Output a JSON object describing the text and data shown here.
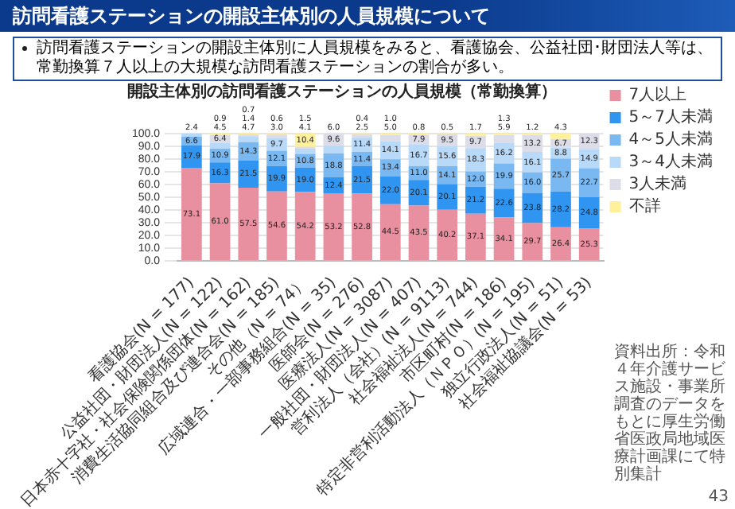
{
  "chart_data": {
    "type": "bar",
    "stacked": true,
    "title": "訪問看護ステーションの開設主体別の人員規模について",
    "subtitle": "開設主体別の訪問看護ステーションの人員規模（常勤換算）",
    "categories": [
      "看護協会(N = 177)",
      "公益社団・財団法人(N = 122)",
      "日本赤十字社・社会保険関係団体(N = 162)",
      "消費生活協同組合及び連合会(N = 185)",
      "その他（N = 74）",
      "広域連合・一部事務組合(N = 35)",
      "医師会(N = 276)",
      "医療法人(N = 3087)",
      "一般社団・財団法人(N = 407)",
      "営利法人（会社）(N = 9113)",
      "社会福祉法人(N = 744)",
      "市区町村(N = 186)",
      "特定非営利活動法人（ＮＰＯ）(N = 195)",
      "独立行政法人(N = 51)",
      "社会福祉協議会(N = 53)"
    ],
    "series": [
      {
        "name": "7人以上",
        "color": "#e8909f",
        "values": [
          73.1,
          61.0,
          57.5,
          54.6,
          54.2,
          53.2,
          52.8,
          44.5,
          43.5,
          40.2,
          37.1,
          34.1,
          29.7,
          26.4,
          25.3
        ],
        "value_labels": [
          "73.1",
          "61.0",
          "57.5",
          "54.6",
          "54.2",
          "53.2",
          "52.8",
          "44.5",
          "43.5",
          "40.2",
          "37.1",
          "34.1",
          "29.7",
          "26.4",
          "25.3"
        ]
      },
      {
        "name": "5～7人未満",
        "color": "#2f95f0",
        "values": [
          17.9,
          16.3,
          21.5,
          19.9,
          19.0,
          12.4,
          21.5,
          22.0,
          20.1,
          20.1,
          21.2,
          22.6,
          23.8,
          28.2,
          24.8
        ],
        "value_labels": [
          "17.9",
          "16.3",
          "21.5",
          "19.9",
          "19.0",
          "12.4",
          "21.5",
          "22.0",
          "20.1",
          "20.1",
          "21.2",
          "22.6",
          "23.8",
          "28.2",
          "24.8"
        ]
      },
      {
        "name": "4～5人未満",
        "color": "#7ab8f2",
        "values": [
          6.6,
          10.9,
          14.3,
          12.1,
          10.8,
          18.8,
          11.4,
          13.4,
          11.0,
          14.1,
          12.0,
          19.9,
          16.0,
          25.7,
          22.7
        ],
        "value_labels": [
          "6.6",
          "10.9",
          "14.3",
          "12.1",
          "10.8",
          "18.8",
          "11.4",
          "13.4",
          "11.0",
          "14.1",
          "12.0",
          "19.9",
          "16.0",
          "25.7",
          "22.7"
        ]
      },
      {
        "name": "3～4人未満",
        "color": "#b8d9f7",
        "values": [
          2.4,
          4.5,
          4.7,
          9.7,
          4.1,
          6.0,
          11.4,
          14.1,
          16.7,
          15.6,
          18.3,
          16.2,
          16.1,
          8.8,
          14.9
        ],
        "value_labels": [
          "2.4",
          "4.5",
          "4.7",
          "9.7",
          "4.1",
          "6.0",
          "11.4",
          "14.1",
          "16.7",
          "15.6",
          "18.3",
          "16.2",
          "16.1",
          "8.8",
          "14.9"
        ]
      },
      {
        "name": "3人未満",
        "color": "#dcdde8",
        "values": [
          null,
          6.4,
          1.4,
          3.0,
          1.5,
          9.6,
          2.5,
          5.0,
          7.9,
          9.5,
          9.7,
          5.9,
          13.2,
          6.7,
          12.3
        ],
        "value_labels": [
          null,
          "6.4",
          "1.4",
          "3.0",
          "1.5",
          "9.6",
          "2.5",
          "5.0",
          "7.9",
          "9.5",
          "9.7",
          "5.9",
          "13.2",
          "6.7",
          "12.3"
        ]
      },
      {
        "name": "不詳",
        "color": "#fff09a",
        "values": [
          null,
          0.9,
          0.7,
          0.6,
          10.4,
          null,
          0.4,
          1.0,
          0.8,
          0.5,
          1.7,
          1.3,
          1.2,
          4.3,
          null
        ],
        "value_labels": [
          null,
          "0.9",
          "0.7",
          "0.6",
          "10.4",
          null,
          "0.4",
          "1.0",
          "0.8",
          "0.5",
          "1.7",
          "1.3",
          "1.2",
          "4.3",
          null
        ]
      }
    ],
    "ylim": [
      0,
      100
    ],
    "yticks": [
      {
        "value": 0,
        "label": "0.0"
      },
      {
        "value": 10,
        "label": "10.0"
      },
      {
        "value": 20,
        "label": "20.0"
      },
      {
        "value": 30,
        "label": "30.0"
      },
      {
        "value": 40,
        "label": "40.0"
      },
      {
        "value": 50,
        "label": "50.0"
      },
      {
        "value": 60,
        "label": "60.0"
      },
      {
        "value": 70,
        "label": "70.0"
      },
      {
        "value": 80,
        "label": "80.0"
      },
      {
        "value": 90,
        "label": "90.0"
      },
      {
        "value": 100,
        "label": "100.0"
      }
    ],
    "grid": "y",
    "legend": "right",
    "annotations": [
      "訪問看護ステーションの開設主体別に人員規模をみると、看護協会、公益社団･財団法人等は、常勤換算７人以上の大規模な訪問看護ステーションの割合が多い。",
      "資料出所：令和４年介護サービス施設・事業所調査のデータをもとに厚生労働省医政局地域医療計画課にて特別集計",
      "43"
    ]
  }
}
